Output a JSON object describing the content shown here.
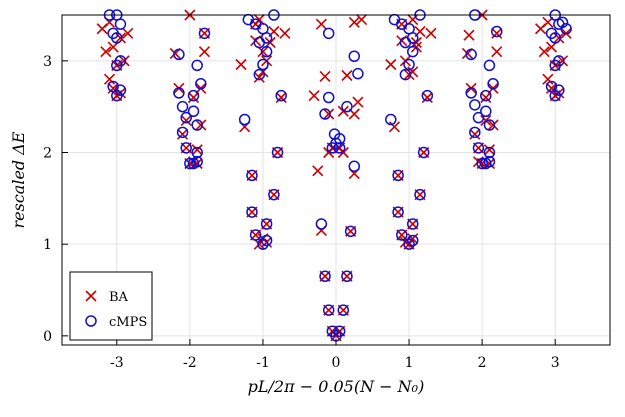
{
  "chart_data": {
    "type": "scatter",
    "title": "",
    "xlabel": "pL/2π − 0.05(N − N₀)",
    "ylabel": "rescaled ΔE",
    "xlim": [
      -3.75,
      3.75
    ],
    "ylim": [
      -0.1,
      3.5
    ],
    "x_ticks": [
      -3,
      -2,
      -1,
      0,
      1,
      2,
      3
    ],
    "x_tick_labels": [
      "-3",
      "-2",
      "-1",
      "0",
      "1",
      "2",
      "3"
    ],
    "y_ticks": [
      0,
      1,
      2,
      3
    ],
    "y_tick_labels": [
      "0",
      "1",
      "2",
      "3"
    ],
    "grid": true,
    "legend_position": "bottom-left",
    "colors": {
      "BA": "#cc0000",
      "cMPS": "#1010cc",
      "grid": "#e3e3e3",
      "axis": "#000000"
    },
    "series": [
      {
        "name": "BA",
        "marker": "x",
        "points": [
          [
            -0.05,
            0.05
          ],
          [
            0.05,
            0.05
          ],
          [
            0.0,
            0.0
          ],
          [
            -0.1,
            0.28
          ],
          [
            0.1,
            0.28
          ],
          [
            -0.15,
            0.65
          ],
          [
            0.15,
            0.65
          ],
          [
            -0.2,
            1.15
          ],
          [
            0.2,
            1.14
          ],
          [
            -0.25,
            1.8
          ],
          [
            0.25,
            1.77
          ],
          [
            -0.05,
            2.05
          ],
          [
            0.05,
            2.05
          ],
          [
            -0.1,
            2.0
          ],
          [
            0.1,
            2.0
          ],
          [
            -0.1,
            2.42
          ],
          [
            0.1,
            2.45
          ],
          [
            0.25,
            2.42
          ],
          [
            -0.3,
            2.62
          ],
          [
            0.3,
            2.55
          ],
          [
            -0.15,
            2.83
          ],
          [
            0.15,
            2.84
          ],
          [
            -0.2,
            3.4
          ],
          [
            0.25,
            3.42
          ],
          [
            0.35,
            3.45
          ],
          [
            -1.05,
            1.0
          ],
          [
            -1.1,
            1.1
          ],
          [
            -0.95,
            1.02
          ],
          [
            -1.0,
            1.06
          ],
          [
            -1.15,
            1.35
          ],
          [
            -0.95,
            1.22
          ],
          [
            -0.85,
            1.54
          ],
          [
            -1.15,
            1.75
          ],
          [
            -0.8,
            2.0
          ],
          [
            -1.25,
            2.28
          ],
          [
            -0.75,
            2.6
          ],
          [
            -1.3,
            2.96
          ],
          [
            -1.05,
            2.82
          ],
          [
            -1.0,
            2.88
          ],
          [
            -0.95,
            3.0
          ],
          [
            -1.1,
            3.22
          ],
          [
            -0.9,
            3.2
          ],
          [
            -1.1,
            3.4
          ],
          [
            -0.85,
            3.32
          ],
          [
            -1.05,
            3.45
          ],
          [
            -0.7,
            3.3
          ],
          [
            -1.0,
            3.1
          ],
          [
            0.95,
            1.02
          ],
          [
            1.05,
            1.06
          ],
          [
            0.9,
            1.1
          ],
          [
            1.0,
            1.0
          ],
          [
            0.85,
            1.35
          ],
          [
            1.05,
            1.22
          ],
          [
            1.15,
            1.54
          ],
          [
            0.85,
            1.75
          ],
          [
            1.2,
            2.0
          ],
          [
            0.8,
            2.28
          ],
          [
            1.25,
            2.6
          ],
          [
            0.75,
            2.96
          ],
          [
            1.05,
            2.88
          ],
          [
            1.0,
            2.85
          ],
          [
            0.95,
            3.0
          ],
          [
            0.9,
            3.22
          ],
          [
            1.1,
            3.2
          ],
          [
            0.9,
            3.4
          ],
          [
            1.15,
            3.32
          ],
          [
            1.05,
            3.45
          ],
          [
            1.3,
            3.3
          ],
          [
            1.1,
            3.15
          ],
          [
            -2.0,
            1.88
          ],
          [
            -1.95,
            1.9
          ],
          [
            -1.9,
            1.88
          ],
          [
            -2.05,
            2.05
          ],
          [
            -1.9,
            2.03
          ],
          [
            -2.1,
            2.2
          ],
          [
            -1.85,
            2.3
          ],
          [
            -2.05,
            2.35
          ],
          [
            -1.95,
            2.6
          ],
          [
            -2.15,
            2.7
          ],
          [
            -1.85,
            2.7
          ],
          [
            -2.2,
            3.08
          ],
          [
            -1.8,
            3.1
          ],
          [
            -2.0,
            3.5
          ],
          [
            -1.8,
            3.3
          ],
          [
            2.0,
            1.88
          ],
          [
            1.95,
            1.9
          ],
          [
            2.1,
            1.88
          ],
          [
            1.95,
            2.05
          ],
          [
            2.1,
            2.03
          ],
          [
            1.9,
            2.2
          ],
          [
            2.15,
            2.3
          ],
          [
            2.05,
            2.35
          ],
          [
            2.05,
            2.6
          ],
          [
            1.85,
            2.7
          ],
          [
            2.15,
            2.7
          ],
          [
            1.8,
            3.08
          ],
          [
            2.2,
            3.1
          ],
          [
            2.0,
            3.5
          ],
          [
            2.2,
            3.3
          ],
          [
            1.82,
            3.28
          ],
          [
            -3.0,
            2.62
          ],
          [
            -3.05,
            2.7
          ],
          [
            -2.95,
            2.65
          ],
          [
            -3.1,
            2.8
          ],
          [
            -3.0,
            2.95
          ],
          [
            -3.15,
            3.1
          ],
          [
            -2.9,
            3.0
          ],
          [
            -3.05,
            3.15
          ],
          [
            -2.95,
            3.25
          ],
          [
            -3.2,
            3.35
          ],
          [
            -2.85,
            3.3
          ],
          [
            -3.1,
            3.42
          ],
          [
            3.0,
            2.62
          ],
          [
            2.95,
            2.7
          ],
          [
            3.05,
            2.65
          ],
          [
            2.9,
            2.8
          ],
          [
            3.0,
            2.95
          ],
          [
            2.85,
            3.1
          ],
          [
            3.1,
            3.0
          ],
          [
            2.95,
            3.15
          ],
          [
            3.05,
            3.25
          ],
          [
            2.8,
            3.35
          ],
          [
            3.15,
            3.3
          ],
          [
            2.9,
            3.42
          ]
        ]
      },
      {
        "name": "cMPS",
        "marker": "o",
        "points": [
          [
            -0.05,
            0.05
          ],
          [
            0.05,
            0.05
          ],
          [
            0.0,
            0.0
          ],
          [
            -0.1,
            0.28
          ],
          [
            0.1,
            0.28
          ],
          [
            -0.15,
            0.65
          ],
          [
            0.15,
            0.65
          ],
          [
            -0.2,
            1.22
          ],
          [
            0.2,
            1.14
          ],
          [
            -0.05,
            2.05
          ],
          [
            0.05,
            2.05
          ],
          [
            -0.02,
            2.2
          ],
          [
            0.05,
            2.15
          ],
          [
            0.0,
            2.1
          ],
          [
            -0.15,
            2.42
          ],
          [
            0.15,
            2.5
          ],
          [
            -0.1,
            2.6
          ],
          [
            0.3,
            2.86
          ],
          [
            0.25,
            3.05
          ],
          [
            -0.1,
            3.3
          ],
          [
            0.25,
            1.85
          ],
          [
            -1.0,
            1.0
          ],
          [
            -1.1,
            1.1
          ],
          [
            -0.95,
            1.04
          ],
          [
            -1.15,
            1.35
          ],
          [
            -0.95,
            1.22
          ],
          [
            -0.85,
            1.54
          ],
          [
            -1.15,
            1.75
          ],
          [
            -0.8,
            2.0
          ],
          [
            -1.25,
            2.36
          ],
          [
            -0.75,
            2.62
          ],
          [
            -1.05,
            2.85
          ],
          [
            -1.0,
            2.96
          ],
          [
            -0.95,
            3.1
          ],
          [
            -1.05,
            3.2
          ],
          [
            -0.95,
            3.25
          ],
          [
            -1.0,
            3.35
          ],
          [
            -1.1,
            3.4
          ],
          [
            -0.85,
            3.5
          ],
          [
            -1.2,
            3.45
          ],
          [
            1.0,
            1.0
          ],
          [
            0.9,
            1.1
          ],
          [
            1.05,
            1.04
          ],
          [
            0.85,
            1.35
          ],
          [
            1.05,
            1.22
          ],
          [
            1.15,
            1.54
          ],
          [
            0.85,
            1.75
          ],
          [
            1.2,
            2.0
          ],
          [
            0.75,
            2.36
          ],
          [
            1.25,
            2.62
          ],
          [
            0.95,
            2.85
          ],
          [
            1.0,
            2.96
          ],
          [
            1.05,
            3.1
          ],
          [
            0.95,
            3.2
          ],
          [
            1.05,
            3.25
          ],
          [
            1.0,
            3.35
          ],
          [
            0.9,
            3.4
          ],
          [
            1.15,
            3.5
          ],
          [
            0.8,
            3.45
          ],
          [
            -2.0,
            1.88
          ],
          [
            -1.95,
            1.88
          ],
          [
            -1.9,
            1.9
          ],
          [
            -2.05,
            2.05
          ],
          [
            -1.9,
            2.0
          ],
          [
            -2.1,
            2.22
          ],
          [
            -1.9,
            2.3
          ],
          [
            -2.05,
            2.38
          ],
          [
            -1.95,
            2.45
          ],
          [
            -2.1,
            2.5
          ],
          [
            -1.95,
            2.62
          ],
          [
            -2.15,
            2.65
          ],
          [
            -1.85,
            2.75
          ],
          [
            -1.9,
            2.95
          ],
          [
            -2.15,
            3.07
          ],
          [
            -1.8,
            3.3
          ],
          [
            2.0,
            1.88
          ],
          [
            2.05,
            1.88
          ],
          [
            2.1,
            1.9
          ],
          [
            1.95,
            2.05
          ],
          [
            2.1,
            2.0
          ],
          [
            1.9,
            2.22
          ],
          [
            2.1,
            2.3
          ],
          [
            1.95,
            2.38
          ],
          [
            2.05,
            2.45
          ],
          [
            1.9,
            2.52
          ],
          [
            2.05,
            2.62
          ],
          [
            1.85,
            2.65
          ],
          [
            2.15,
            2.75
          ],
          [
            2.1,
            2.95
          ],
          [
            1.85,
            3.07
          ],
          [
            2.2,
            3.32
          ],
          [
            1.9,
            3.5
          ],
          [
            -3.0,
            2.62
          ],
          [
            -2.95,
            2.68
          ],
          [
            -3.05,
            2.72
          ],
          [
            -3.0,
            2.95
          ],
          [
            -2.95,
            3.0
          ],
          [
            -3.0,
            3.25
          ],
          [
            -3.05,
            3.3
          ],
          [
            -2.95,
            3.4
          ],
          [
            -3.0,
            3.5
          ],
          [
            -3.1,
            3.5
          ],
          [
            3.0,
            2.62
          ],
          [
            3.05,
            2.68
          ],
          [
            2.95,
            2.72
          ],
          [
            3.0,
            2.95
          ],
          [
            3.05,
            3.0
          ],
          [
            3.0,
            3.25
          ],
          [
            2.95,
            3.3
          ],
          [
            3.05,
            3.4
          ],
          [
            3.0,
            3.5
          ],
          [
            3.1,
            3.42
          ],
          [
            3.15,
            3.35
          ]
        ]
      }
    ]
  }
}
